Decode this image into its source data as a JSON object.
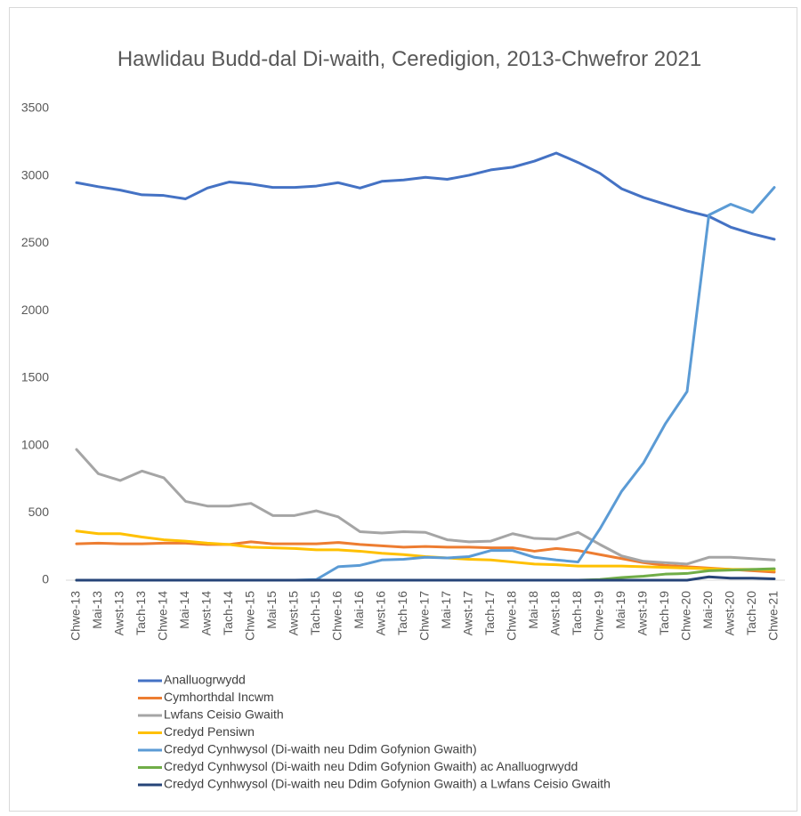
{
  "chart_data": {
    "type": "line",
    "title": "Hawlidau Budd-dal Di-waith, Ceredigion, 2013-Chwefror 2021",
    "categories": [
      "Chwe-13",
      "Mai-13",
      "Awst-13",
      "Tach-13",
      "Chwe-14",
      "Mai-14",
      "Awst-14",
      "Tach-14",
      "Chwe-15",
      "Mai-15",
      "Awst-15",
      "Tach-15",
      "Chwe-16",
      "Mai-16",
      "Awst-16",
      "Tach-16",
      "Chwe-17",
      "Mai-17",
      "Awst-17",
      "Tach-17",
      "Chwe-18",
      "Mai-18",
      "Awst-18",
      "Tach-18",
      "Chwe-19",
      "Mai-19",
      "Awst-19",
      "Tach-19",
      "Chwe-20",
      "Mai-20",
      "Awst-20",
      "Tach-20",
      "Chwe-21"
    ],
    "series": [
      {
        "name": "Analluogrwydd",
        "color": "#4472c4",
        "values": [
          2950,
          2920,
          2895,
          2860,
          2855,
          2830,
          2910,
          2955,
          2940,
          2915,
          2915,
          2925,
          2950,
          2910,
          2960,
          2970,
          2990,
          2975,
          3005,
          3045,
          3065,
          3110,
          3170,
          3100,
          3020,
          2905,
          2840,
          2790,
          2740,
          2700,
          2620,
          2570,
          2530
        ]
      },
      {
        "name": "Cymhorthdal Incwm",
        "color": "#ed7d31",
        "values": [
          270,
          275,
          270,
          270,
          275,
          275,
          265,
          265,
          285,
          270,
          270,
          270,
          280,
          265,
          255,
          245,
          250,
          245,
          245,
          240,
          240,
          215,
          235,
          220,
          190,
          160,
          130,
          110,
          100,
          90,
          80,
          70,
          60
        ]
      },
      {
        "name": "Lwfans Ceisio Gwaith",
        "color": "#a5a5a5",
        "values": [
          970,
          790,
          740,
          810,
          760,
          585,
          550,
          550,
          570,
          480,
          480,
          515,
          470,
          360,
          350,
          360,
          355,
          300,
          285,
          290,
          345,
          310,
          305,
          355,
          265,
          180,
          140,
          130,
          120,
          170,
          170,
          160,
          150
        ]
      },
      {
        "name": "Credyd Pensiwn",
        "color": "#ffc000",
        "values": [
          365,
          345,
          345,
          320,
          300,
          290,
          275,
          265,
          245,
          240,
          235,
          225,
          225,
          215,
          200,
          190,
          175,
          165,
          155,
          150,
          135,
          120,
          115,
          105,
          105,
          105,
          100,
          95,
          90,
          85,
          80,
          80,
          75
        ]
      },
      {
        "name": "Credyd Cynhwysol (Di-waith neu Ddim Gofynion Gwaith)",
        "color": "#5b9bd5",
        "values": [
          0,
          0,
          0,
          0,
          0,
          0,
          0,
          0,
          0,
          0,
          0,
          5,
          100,
          110,
          150,
          155,
          170,
          165,
          175,
          220,
          220,
          170,
          150,
          135,
          380,
          660,
          870,
          1160,
          1400,
          2710,
          2790,
          2730,
          2915
        ]
      },
      {
        "name": "Credyd Cynhwysol (Di-waith neu Ddim Gofynion Gwaith) ac Analluogrwydd",
        "color": "#70ad47",
        "values": [
          0,
          0,
          0,
          0,
          0,
          0,
          0,
          0,
          0,
          0,
          0,
          0,
          0,
          0,
          0,
          0,
          0,
          0,
          0,
          0,
          0,
          0,
          0,
          0,
          5,
          20,
          30,
          45,
          50,
          70,
          75,
          80,
          85
        ]
      },
      {
        "name": "Credyd Cynhwysol (Di-waith neu Ddim Gofynion Gwaith) a Lwfans Ceisio Gwaith",
        "color": "#264478",
        "values": [
          0,
          0,
          0,
          0,
          0,
          0,
          0,
          0,
          0,
          0,
          0,
          0,
          0,
          0,
          0,
          0,
          0,
          0,
          0,
          0,
          0,
          0,
          0,
          0,
          0,
          0,
          0,
          0,
          0,
          25,
          15,
          15,
          10
        ]
      }
    ],
    "ylim": [
      0,
      3500
    ],
    "yticks": [
      0,
      500,
      1000,
      1500,
      2000,
      2500,
      3000,
      3500
    ],
    "grid": false,
    "legend": "bottom"
  }
}
